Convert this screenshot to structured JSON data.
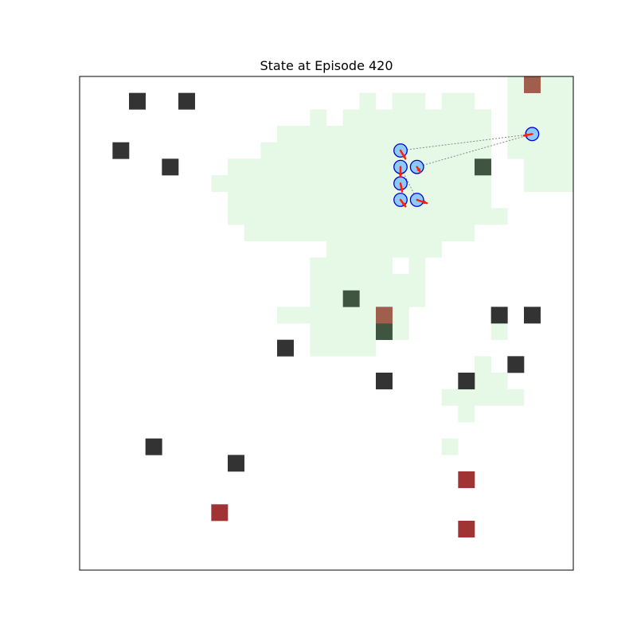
{
  "chart_data": {
    "type": "heatmap",
    "title": "State at Episode 420",
    "grid": {
      "cols": 30,
      "rows": 30
    },
    "xlim": [
      0,
      30
    ],
    "ylim": [
      0,
      30
    ],
    "show_ticks": false,
    "colors": {
      "explored": "#e6f9e6",
      "obstacle": "#333333",
      "target_explored": "#405540",
      "hazard": "#a03333",
      "hazard_explored": "#a05f4d",
      "agent_fill": "#8ccbff",
      "agent_edge": "#0000cc",
      "heading": "#ff2200",
      "link": "#888888"
    },
    "explored_runs": [
      {
        "row": 0,
        "segments": [
          [
            26,
            29
          ]
        ]
      },
      {
        "row": 1,
        "segments": [
          [
            17,
            17
          ],
          [
            19,
            20
          ],
          [
            22,
            23
          ],
          [
            26,
            29
          ]
        ]
      },
      {
        "row": 2,
        "segments": [
          [
            14,
            14
          ],
          [
            16,
            24
          ],
          [
            26,
            29
          ]
        ]
      },
      {
        "row": 3,
        "segments": [
          [
            12,
            24
          ],
          [
            26,
            29
          ]
        ]
      },
      {
        "row": 4,
        "segments": [
          [
            11,
            24
          ],
          [
            26,
            29
          ]
        ]
      },
      {
        "row": 5,
        "segments": [
          [
            9,
            24
          ],
          [
            27,
            29
          ]
        ]
      },
      {
        "row": 6,
        "segments": [
          [
            8,
            24
          ],
          [
            27,
            29
          ]
        ]
      },
      {
        "row": 7,
        "segments": [
          [
            9,
            24
          ]
        ]
      },
      {
        "row": 8,
        "segments": [
          [
            9,
            25
          ]
        ]
      },
      {
        "row": 9,
        "segments": [
          [
            10,
            23
          ]
        ]
      },
      {
        "row": 10,
        "segments": [
          [
            15,
            21
          ]
        ]
      },
      {
        "row": 11,
        "segments": [
          [
            14,
            18
          ],
          [
            20,
            20
          ]
        ]
      },
      {
        "row": 12,
        "segments": [
          [
            14,
            20
          ]
        ]
      },
      {
        "row": 13,
        "segments": [
          [
            14,
            20
          ]
        ]
      },
      {
        "row": 14,
        "segments": [
          [
            12,
            19
          ]
        ]
      },
      {
        "row": 15,
        "segments": [
          [
            14,
            19
          ],
          [
            25,
            25
          ]
        ]
      },
      {
        "row": 16,
        "segments": [
          [
            14,
            17
          ]
        ]
      },
      {
        "row": 17,
        "segments": [
          [
            24,
            24
          ]
        ]
      },
      {
        "row": 18,
        "segments": [
          [
            23,
            25
          ]
        ]
      },
      {
        "row": 19,
        "segments": [
          [
            22,
            26
          ]
        ]
      },
      {
        "row": 20,
        "segments": [
          [
            23,
            23
          ]
        ]
      },
      {
        "row": 22,
        "segments": [
          [
            22,
            22
          ]
        ]
      }
    ],
    "obstacles": [
      [
        3,
        1
      ],
      [
        6,
        1
      ],
      [
        2,
        4
      ],
      [
        5,
        5
      ],
      [
        25,
        14
      ],
      [
        27,
        14
      ],
      [
        12,
        16
      ],
      [
        26,
        17
      ],
      [
        18,
        18
      ],
      [
        23,
        18
      ],
      [
        4,
        22
      ],
      [
        9,
        23
      ]
    ],
    "explored_targets": [
      [
        24,
        5
      ],
      [
        16,
        13
      ],
      [
        18,
        15
      ]
    ],
    "hazards": [
      [
        23,
        24
      ],
      [
        8,
        26
      ],
      [
        23,
        27
      ]
    ],
    "explored_hazards": [
      [
        27,
        0
      ],
      [
        18,
        14
      ]
    ],
    "agents": [
      {
        "x": 19.5,
        "y": 4.5,
        "heading": [
          0.3,
          0.5
        ]
      },
      {
        "x": 19.5,
        "y": 5.5,
        "heading": [
          0.0,
          0.6
        ]
      },
      {
        "x": 20.5,
        "y": 5.5,
        "heading": [
          0.2,
          0.3
        ]
      },
      {
        "x": 19.5,
        "y": 6.5,
        "heading": [
          0.1,
          0.5
        ]
      },
      {
        "x": 19.5,
        "y": 7.5,
        "heading": [
          0.3,
          0.4
        ]
      },
      {
        "x": 20.5,
        "y": 7.5,
        "heading": [
          0.6,
          0.2
        ]
      },
      {
        "x": 27.5,
        "y": 3.5,
        "heading": [
          -0.5,
          0.1
        ]
      }
    ],
    "links": [
      [
        [
          19.5,
          4.5
        ],
        [
          27.5,
          3.5
        ]
      ],
      [
        [
          20.5,
          5.5
        ],
        [
          27.5,
          3.5
        ]
      ],
      [
        [
          19.5,
          5.5
        ],
        [
          20.5,
          7.5
        ]
      ]
    ]
  }
}
